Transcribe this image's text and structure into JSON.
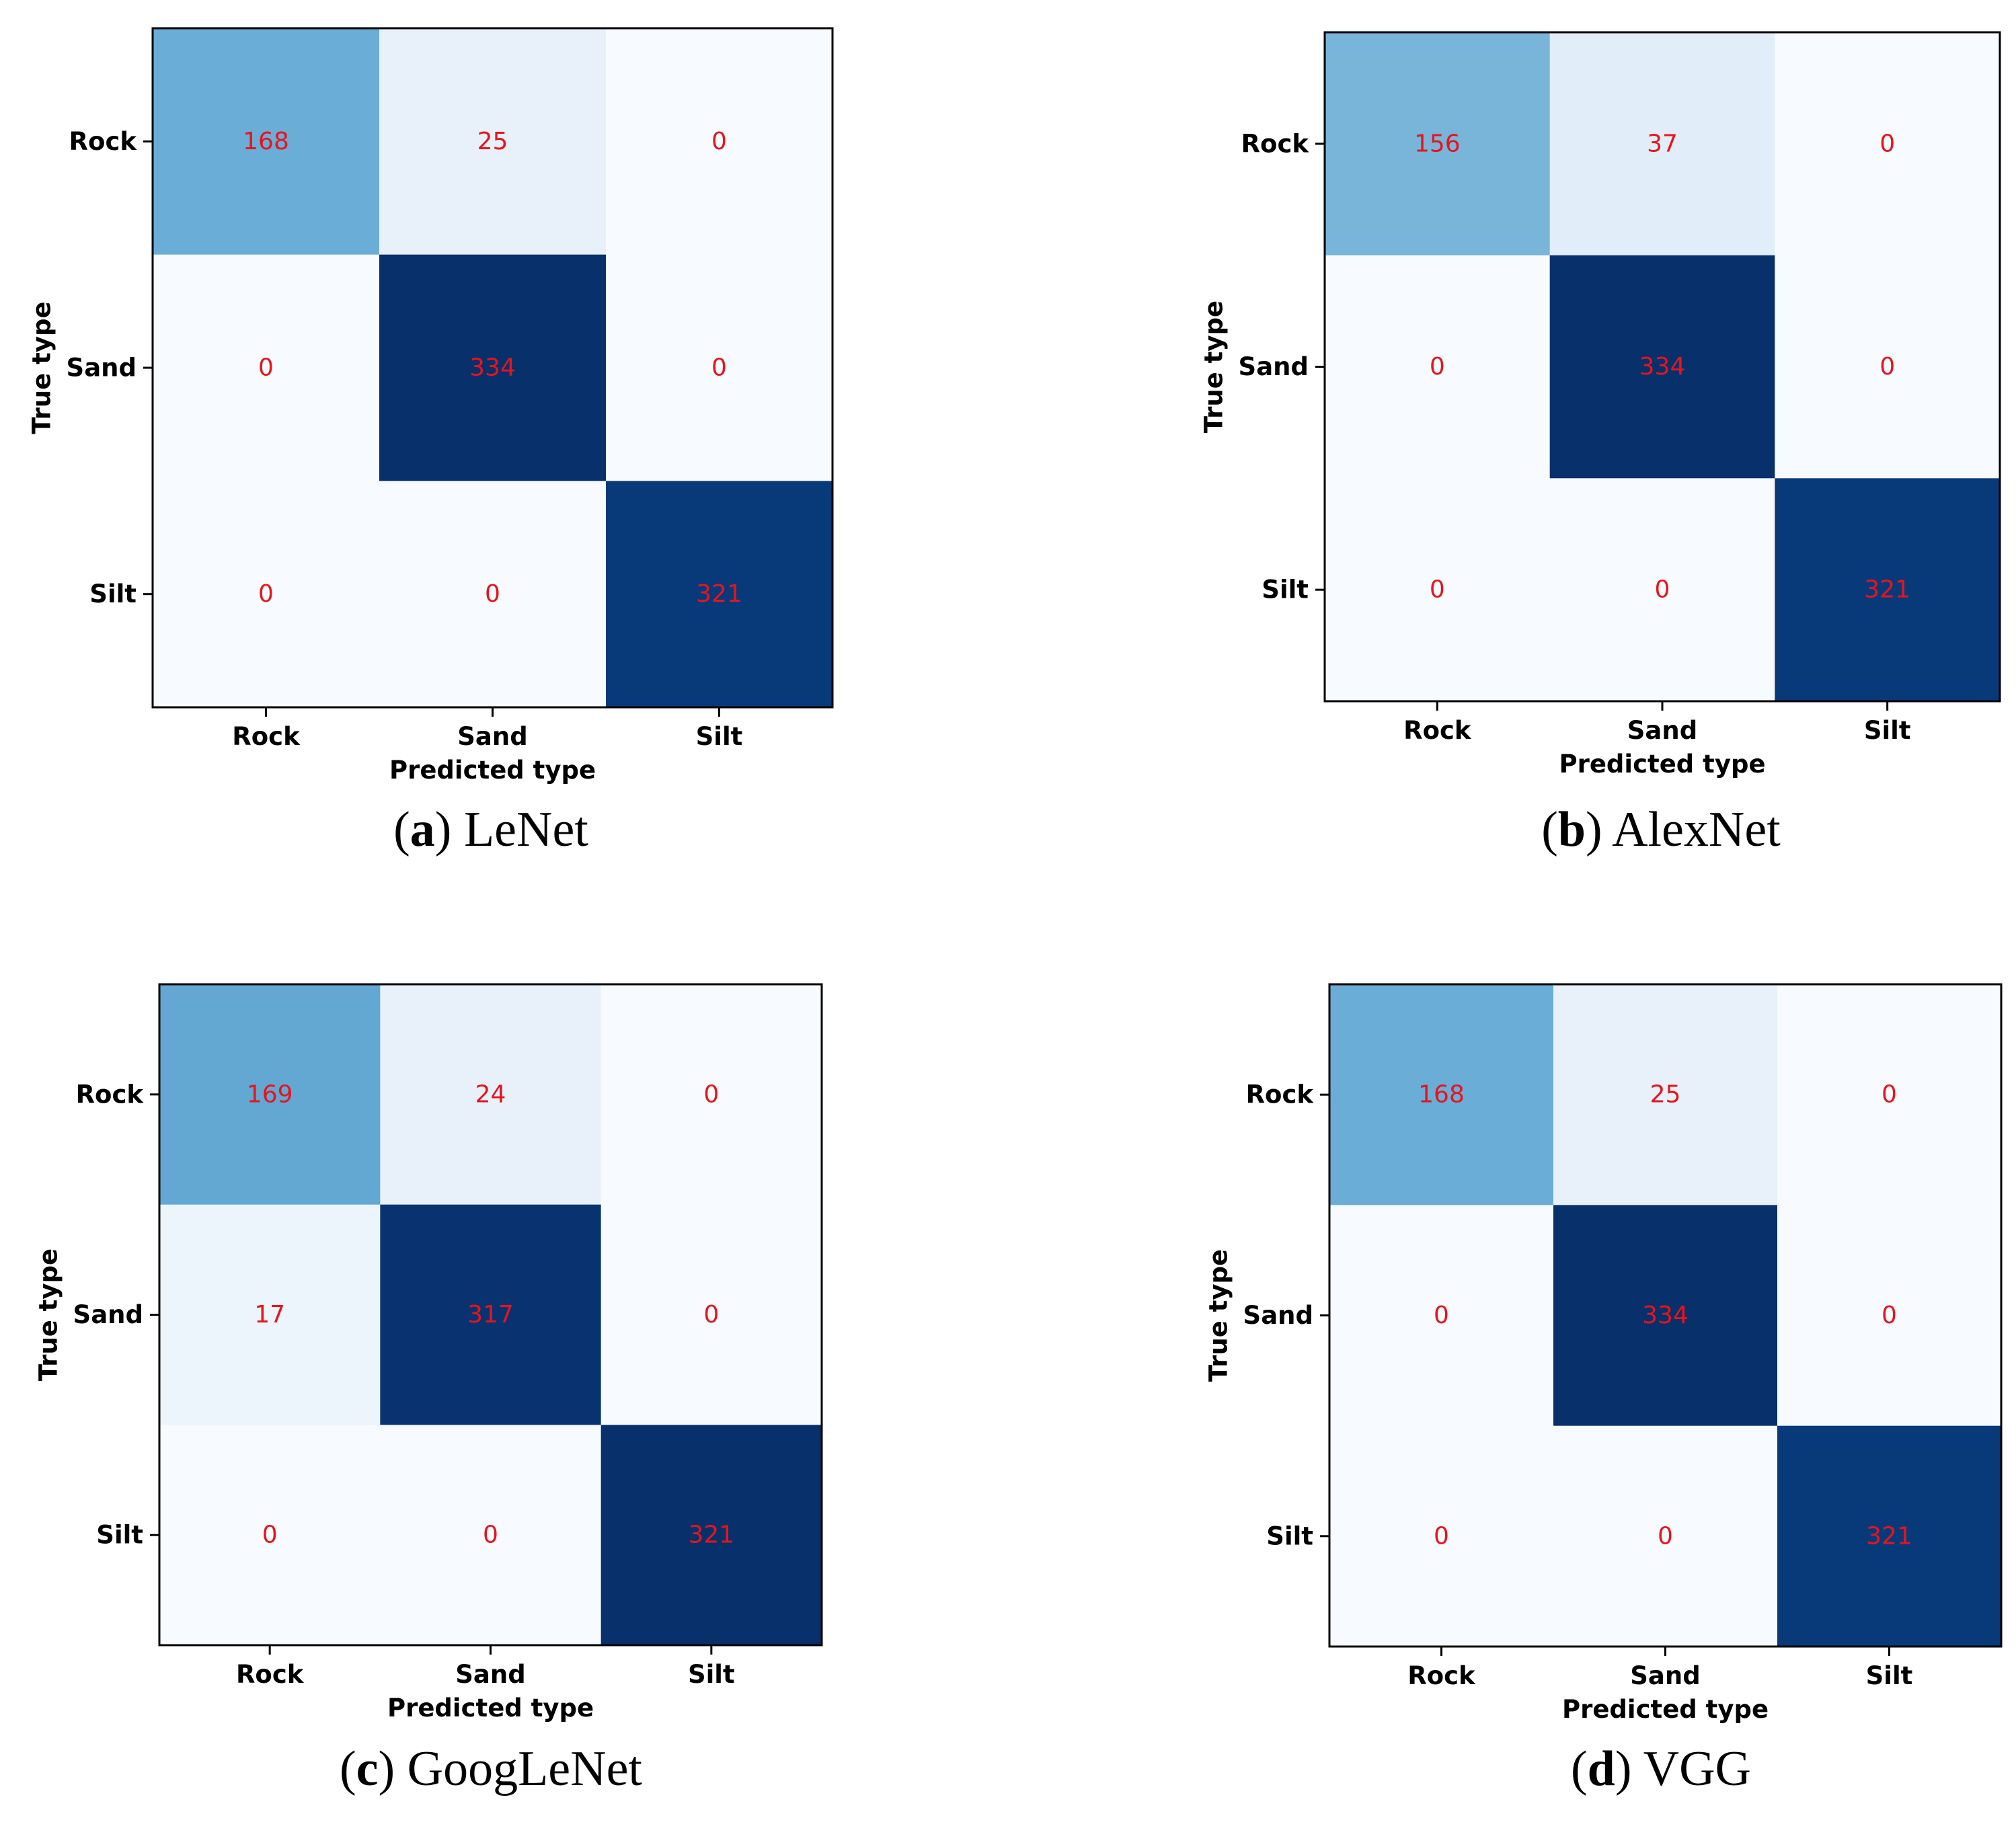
{
  "colors": {
    "low": "#f7fbff",
    "high": "#08306b",
    "annotation": "#e8141c",
    "frame": "#000000"
  },
  "chart_data": [
    {
      "type": "heatmap",
      "caption": {
        "letter": "a",
        "prefix": "(",
        "suffix": ")",
        "name": "LeNet"
      },
      "xlabel": "Predicted type",
      "ylabel": "True type",
      "x_categories": [
        "Rock",
        "Sand",
        "Silt"
      ],
      "y_categories": [
        "Rock",
        "Sand",
        "Silt"
      ],
      "matrix": [
        [
          168,
          25,
          0
        ],
        [
          0,
          334,
          0
        ],
        [
          0,
          0,
          321
        ]
      ]
    },
    {
      "type": "heatmap",
      "caption": {
        "letter": "b",
        "prefix": "(",
        "suffix": ")",
        "name": "AlexNet"
      },
      "xlabel": "Predicted type",
      "ylabel": "True type",
      "x_categories": [
        "Rock",
        "Sand",
        "Silt"
      ],
      "y_categories": [
        "Rock",
        "Sand",
        "Silt"
      ],
      "matrix": [
        [
          156,
          37,
          0
        ],
        [
          0,
          334,
          0
        ],
        [
          0,
          0,
          321
        ]
      ]
    },
    {
      "type": "heatmap",
      "caption": {
        "letter": "c",
        "prefix": "(",
        "suffix": ")",
        "name": "GoogLeNet"
      },
      "xlabel": "Predicted type",
      "ylabel": "True type",
      "x_categories": [
        "Rock",
        "Sand",
        "Silt"
      ],
      "y_categories": [
        "Rock",
        "Sand",
        "Silt"
      ],
      "matrix": [
        [
          169,
          24,
          0
        ],
        [
          17,
          317,
          0
        ],
        [
          0,
          0,
          321
        ]
      ]
    },
    {
      "type": "heatmap",
      "caption": {
        "letter": "d",
        "prefix": "(",
        "suffix": ")",
        "name": "VGG"
      },
      "xlabel": "Predicted type",
      "ylabel": "True type",
      "x_categories": [
        "Rock",
        "Sand",
        "Silt"
      ],
      "y_categories": [
        "Rock",
        "Sand",
        "Silt"
      ],
      "matrix": [
        [
          168,
          25,
          0
        ],
        [
          0,
          334,
          0
        ],
        [
          0,
          0,
          321
        ]
      ]
    }
  ]
}
